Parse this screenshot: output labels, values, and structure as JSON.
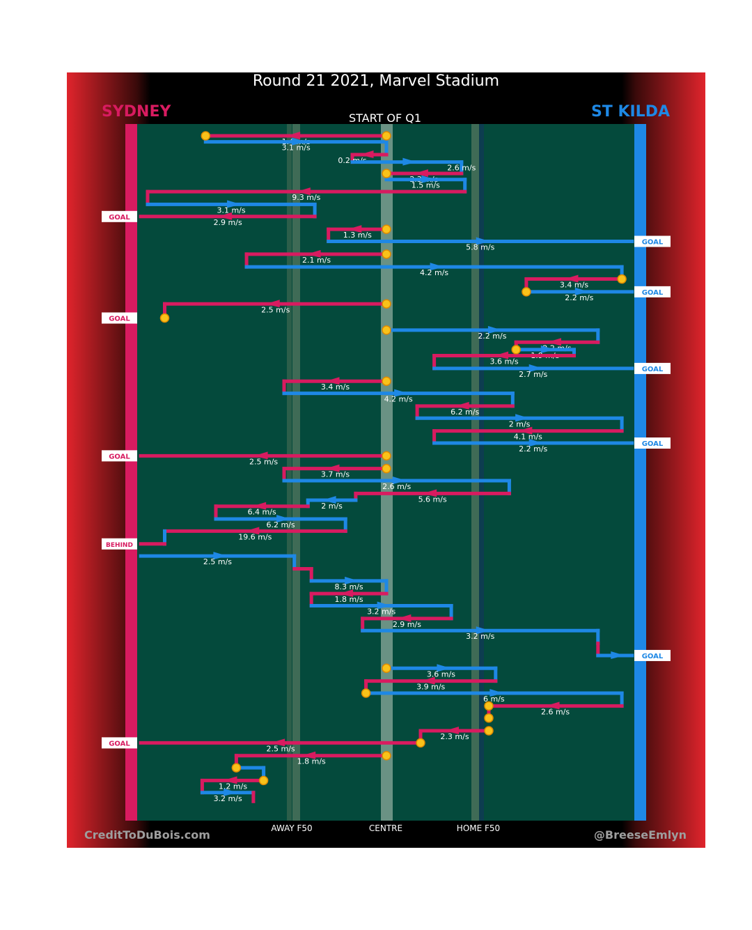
{
  "header": {
    "title": "Round 21 2021, Marvel Stadium",
    "period_label": "START OF Q1",
    "away_team": "SYDNEY",
    "home_team": "ST KILDA"
  },
  "footer": {
    "credit_left": "CreditToDuBois.com",
    "credit_right": "@BreeseEmlyn"
  },
  "colors": {
    "away": "#d81b60",
    "home": "#1e88e5",
    "field": "#044a3c",
    "marker": "#f9c21a"
  },
  "chart_data": {
    "type": "line",
    "title": "Round 21 2021, Marvel Stadium",
    "xlabel": "",
    "ylabel": "",
    "tick_labels": [
      "AWAY F50",
      "CENTRE",
      "HOME F50"
    ],
    "legend": [
      "SYDNEY",
      "ST KILDA"
    ],
    "segments": [
      {
        "team": "away",
        "start": [
          0.0,
          0.0
        ],
        "end": [
          -0.53,
          0.0
        ],
        "label": "1.4 m/s",
        "marker": "both"
      },
      {
        "team": "home",
        "start": [
          -0.53,
          0.009
        ],
        "end": [
          0.0,
          0.009
        ],
        "label": "3.1 m/s"
      },
      {
        "team": "home",
        "start": [
          0.0,
          0.009
        ],
        "end": [
          0.0,
          0.028
        ]
      },
      {
        "team": "away",
        "start": [
          0.0,
          0.028
        ],
        "end": [
          -0.1,
          0.028
        ]
      },
      {
        "team": "away",
        "start": [
          -0.1,
          0.028
        ],
        "end": [
          -0.1,
          0.039
        ],
        "label": "0.2 m/s"
      },
      {
        "team": "home",
        "start": [
          -0.1,
          0.039
        ],
        "end": [
          0.22,
          0.039
        ]
      },
      {
        "team": "home",
        "start": [
          0.22,
          0.039
        ],
        "end": [
          0.22,
          0.056
        ],
        "label": "2.6 m/s"
      },
      {
        "team": "away",
        "start": [
          0.22,
          0.056
        ],
        "end": [
          0.0,
          0.056
        ],
        "label": "2.3 m/s",
        "marker": "end"
      },
      {
        "team": "home",
        "start": [
          0.0,
          0.065
        ],
        "end": [
          0.23,
          0.065
        ],
        "label": "1.5 m/s"
      },
      {
        "team": "home",
        "start": [
          0.23,
          0.065
        ],
        "end": [
          0.23,
          0.083
        ]
      },
      {
        "team": "away",
        "start": [
          0.23,
          0.083
        ],
        "end": [
          -0.7,
          0.083
        ],
        "label": "9.3 m/s"
      },
      {
        "team": "away",
        "start": [
          -0.7,
          0.083
        ],
        "end": [
          -0.7,
          0.102
        ]
      },
      {
        "team": "home",
        "start": [
          -0.7,
          0.102
        ],
        "end": [
          -0.21,
          0.102
        ],
        "label": "3.1 m/s"
      },
      {
        "team": "home",
        "start": [
          -0.21,
          0.102
        ],
        "end": [
          -0.21,
          0.12
        ]
      },
      {
        "team": "away",
        "start": [
          -0.21,
          0.12
        ],
        "end": [
          -0.72,
          0.12
        ],
        "label": "2.9 m/s",
        "outcome": "GOAL"
      },
      {
        "team": "away",
        "start": [
          0.0,
          0.139
        ],
        "end": [
          -0.17,
          0.139
        ],
        "label": "1.3 m/s",
        "marker": "start"
      },
      {
        "team": "away",
        "start": [
          -0.17,
          0.139
        ],
        "end": [
          -0.17,
          0.157
        ]
      },
      {
        "team": "home",
        "start": [
          -0.17,
          0.157
        ],
        "end": [
          0.72,
          0.157
        ],
        "label": "5.8 m/s",
        "outcome": "GOAL"
      },
      {
        "team": "away",
        "start": [
          0.0,
          0.176
        ],
        "end": [
          -0.41,
          0.176
        ],
        "label": "2.1 m/s",
        "marker": "start"
      },
      {
        "team": "away",
        "start": [
          -0.41,
          0.176
        ],
        "end": [
          -0.41,
          0.195
        ]
      },
      {
        "team": "home",
        "start": [
          -0.41,
          0.195
        ],
        "end": [
          0.69,
          0.195
        ],
        "label": "4.2 m/s"
      },
      {
        "team": "home",
        "start": [
          0.69,
          0.195
        ],
        "end": [
          0.69,
          0.213
        ]
      },
      {
        "team": "away",
        "start": [
          0.69,
          0.213
        ],
        "end": [
          0.41,
          0.213
        ],
        "label": "3.4 m/s",
        "marker": "start"
      },
      {
        "team": "away",
        "start": [
          0.41,
          0.213
        ],
        "end": [
          0.41,
          0.232
        ]
      },
      {
        "team": "home",
        "start": [
          0.41,
          0.232
        ],
        "end": [
          0.72,
          0.232
        ],
        "label": "2.2 m/s",
        "marker": "start",
        "outcome": "GOAL"
      },
      {
        "team": "away",
        "start": [
          0.0,
          0.25
        ],
        "end": [
          -0.65,
          0.25
        ],
        "label": "2.5 m/s",
        "marker": "start"
      },
      {
        "team": "away",
        "start": [
          -0.65,
          0.25
        ],
        "end": [
          -0.65,
          0.271
        ],
        "marker": "end",
        "outcome": "GOAL"
      },
      {
        "team": "home",
        "start": [
          0.0,
          0.289
        ],
        "end": [
          0.62,
          0.289
        ],
        "label": "2.2 m/s",
        "marker": "start"
      },
      {
        "team": "home",
        "start": [
          0.62,
          0.289
        ],
        "end": [
          0.62,
          0.307
        ]
      },
      {
        "team": "away",
        "start": [
          0.62,
          0.307
        ],
        "end": [
          0.38,
          0.307
        ],
        "label": "2.2 m/s"
      },
      {
        "team": "away",
        "start": [
          0.38,
          0.307
        ],
        "end": [
          0.38,
          0.318
        ],
        "marker": "end"
      },
      {
        "team": "home",
        "start": [
          0.38,
          0.318
        ],
        "end": [
          0.55,
          0.318
        ],
        "label": "1.9 m/s"
      },
      {
        "team": "home",
        "start": [
          0.55,
          0.318
        ],
        "end": [
          0.55,
          0.327
        ]
      },
      {
        "team": "away",
        "start": [
          0.55,
          0.327
        ],
        "end": [
          0.14,
          0.327
        ],
        "label": "3.6 m/s"
      },
      {
        "team": "away",
        "start": [
          0.14,
          0.327
        ],
        "end": [
          0.14,
          0.346
        ]
      },
      {
        "team": "home",
        "start": [
          0.14,
          0.346
        ],
        "end": [
          0.72,
          0.346
        ],
        "label": "2.7 m/s",
        "outcome": "GOAL"
      },
      {
        "team": "away",
        "start": [
          0.0,
          0.365
        ],
        "end": [
          -0.3,
          0.365
        ],
        "label": "3.4 m/s",
        "marker": "start"
      },
      {
        "team": "away",
        "start": [
          -0.3,
          0.365
        ],
        "end": [
          -0.3,
          0.383
        ]
      },
      {
        "team": "home",
        "start": [
          -0.3,
          0.383
        ],
        "end": [
          0.37,
          0.383
        ],
        "label": "4.2 m/s"
      },
      {
        "team": "home",
        "start": [
          0.37,
          0.383
        ],
        "end": [
          0.37,
          0.402
        ]
      },
      {
        "team": "away",
        "start": [
          0.37,
          0.402
        ],
        "end": [
          0.09,
          0.402
        ],
        "label": "6.2 m/s"
      },
      {
        "team": "away",
        "start": [
          0.09,
          0.402
        ],
        "end": [
          0.09,
          0.42
        ]
      },
      {
        "team": "home",
        "start": [
          0.09,
          0.42
        ],
        "end": [
          0.69,
          0.42
        ],
        "label": "2 m/s"
      },
      {
        "team": "home",
        "start": [
          0.69,
          0.42
        ],
        "end": [
          0.69,
          0.439
        ]
      },
      {
        "team": "away",
        "start": [
          0.69,
          0.439
        ],
        "end": [
          0.14,
          0.439
        ],
        "label": "4.1 m/s"
      },
      {
        "team": "away",
        "start": [
          0.14,
          0.439
        ],
        "end": [
          0.14,
          0.457
        ]
      },
      {
        "team": "home",
        "start": [
          0.14,
          0.457
        ],
        "end": [
          0.72,
          0.457
        ],
        "label": "2.2 m/s",
        "outcome": "GOAL"
      },
      {
        "team": "away",
        "start": [
          0.0,
          0.476
        ],
        "end": [
          -0.72,
          0.476
        ],
        "label": "2.5 m/s",
        "marker": "start",
        "outcome": "GOAL"
      },
      {
        "team": "away",
        "start": [
          0.0,
          0.495
        ],
        "end": [
          -0.3,
          0.495
        ],
        "label": "3.7 m/s",
        "marker": "start"
      },
      {
        "team": "away",
        "start": [
          -0.3,
          0.495
        ],
        "end": [
          -0.3,
          0.513
        ]
      },
      {
        "team": "home",
        "start": [
          -0.3,
          0.513
        ],
        "end": [
          0.36,
          0.513
        ],
        "label": "2.6 m/s"
      },
      {
        "team": "home",
        "start": [
          0.36,
          0.513
        ],
        "end": [
          0.36,
          0.532
        ]
      },
      {
        "team": "away",
        "start": [
          0.36,
          0.532
        ],
        "end": [
          -0.09,
          0.532
        ],
        "label": "5.6 m/s"
      },
      {
        "team": "away",
        "start": [
          -0.09,
          0.532
        ],
        "end": [
          -0.09,
          0.542
        ]
      },
      {
        "team": "home",
        "start": [
          -0.09,
          0.542
        ],
        "end": [
          -0.23,
          0.542
        ],
        "label": "2 m/s"
      },
      {
        "team": "home",
        "start": [
          -0.23,
          0.542
        ],
        "end": [
          -0.23,
          0.551
        ]
      },
      {
        "team": "away",
        "start": [
          -0.23,
          0.551
        ],
        "end": [
          -0.5,
          0.551
        ],
        "label": "6.4 m/s"
      },
      {
        "team": "away",
        "start": [
          -0.5,
          0.551
        ],
        "end": [
          -0.5,
          0.57
        ]
      },
      {
        "team": "home",
        "start": [
          -0.5,
          0.57
        ],
        "end": [
          -0.12,
          0.57
        ],
        "label": "6.2 m/s"
      },
      {
        "team": "home",
        "start": [
          -0.12,
          0.57
        ],
        "end": [
          -0.12,
          0.588
        ]
      },
      {
        "team": "away",
        "start": [
          -0.12,
          0.588
        ],
        "end": [
          -0.65,
          0.588
        ],
        "label": "19.6 m/s"
      },
      {
        "team": "away",
        "start": [
          -0.65,
          0.588
        ],
        "end": [
          -0.65,
          0.607
        ]
      },
      {
        "team": "home",
        "start": [
          -0.65,
          0.588
        ],
        "end": [
          -0.65,
          0.607
        ]
      },
      {
        "team": "away",
        "start": [
          -0.65,
          0.607
        ],
        "end": [
          -0.72,
          0.607
        ],
        "outcome": "BEHIND"
      },
      {
        "team": "home",
        "start": [
          -0.72,
          0.625
        ],
        "end": [
          -0.27,
          0.625
        ],
        "label": "2.5 m/s"
      },
      {
        "team": "home",
        "start": [
          -0.27,
          0.625
        ],
        "end": [
          -0.27,
          0.644
        ]
      },
      {
        "team": "away",
        "start": [
          -0.27,
          0.644
        ],
        "end": [
          -0.22,
          0.644
        ]
      },
      {
        "team": "away",
        "start": [
          -0.22,
          0.644
        ],
        "end": [
          -0.22,
          0.662
        ]
      },
      {
        "team": "home",
        "start": [
          -0.22,
          0.662
        ],
        "end": [
          0.0,
          0.662
        ],
        "label": "8.3 m/s"
      },
      {
        "team": "home",
        "start": [
          0.0,
          0.662
        ],
        "end": [
          0.0,
          0.681
        ]
      },
      {
        "team": "away",
        "start": [
          0.0,
          0.681
        ],
        "end": [
          -0.22,
          0.681
        ],
        "label": "1.8 m/s"
      },
      {
        "team": "away",
        "start": [
          -0.22,
          0.681
        ],
        "end": [
          -0.22,
          0.699
        ]
      },
      {
        "team": "home",
        "start": [
          -0.22,
          0.699
        ],
        "end": [
          0.19,
          0.699
        ],
        "label": "3.2 m/s"
      },
      {
        "team": "home",
        "start": [
          0.19,
          0.699
        ],
        "end": [
          0.19,
          0.718
        ]
      },
      {
        "team": "away",
        "start": [
          0.19,
          0.718
        ],
        "end": [
          -0.07,
          0.718
        ],
        "label": "2.9 m/s"
      },
      {
        "team": "away",
        "start": [
          -0.07,
          0.718
        ],
        "end": [
          -0.07,
          0.736
        ]
      },
      {
        "team": "home",
        "start": [
          -0.07,
          0.736
        ],
        "end": [
          0.62,
          0.736
        ],
        "label": "3.2 m/s"
      },
      {
        "team": "home",
        "start": [
          0.62,
          0.736
        ],
        "end": [
          0.62,
          0.755
        ]
      },
      {
        "team": "away",
        "start": [
          0.62,
          0.755
        ],
        "end": [
          0.62,
          0.773
        ]
      },
      {
        "team": "home",
        "start": [
          0.62,
          0.773
        ],
        "end": [
          0.72,
          0.773
        ],
        "outcome": "GOAL"
      },
      {
        "team": "home",
        "start": [
          0.0,
          0.792
        ],
        "end": [
          0.32,
          0.792
        ],
        "label": "3.6 m/s",
        "marker": "start"
      },
      {
        "team": "home",
        "start": [
          0.32,
          0.792
        ],
        "end": [
          0.32,
          0.811
        ]
      },
      {
        "team": "away",
        "start": [
          0.32,
          0.811
        ],
        "end": [
          -0.06,
          0.811
        ],
        "label": "3.9 m/s"
      },
      {
        "team": "away",
        "start": [
          -0.06,
          0.811
        ],
        "end": [
          -0.06,
          0.829
        ],
        "marker": "end"
      },
      {
        "team": "home",
        "start": [
          -0.06,
          0.829
        ],
        "end": [
          0.69,
          0.829
        ],
        "label": "6 m/s"
      },
      {
        "team": "home",
        "start": [
          0.69,
          0.829
        ],
        "end": [
          0.69,
          0.848
        ]
      },
      {
        "team": "away",
        "start": [
          0.69,
          0.848
        ],
        "end": [
          0.3,
          0.848
        ],
        "label": "2.6 m/s"
      },
      {
        "team": "away",
        "start": [
          0.3,
          0.848
        ],
        "end": [
          0.3,
          0.866
        ],
        "marker": "both"
      },
      {
        "team": "away",
        "start": [
          0.3,
          0.885
        ],
        "end": [
          0.1,
          0.885
        ],
        "label": "2.3 m/s",
        "marker": "start"
      },
      {
        "team": "away",
        "start": [
          0.1,
          0.885
        ],
        "end": [
          0.1,
          0.903
        ],
        "marker": "end"
      },
      {
        "team": "away",
        "start": [
          0.1,
          0.903
        ],
        "end": [
          -0.72,
          0.903
        ],
        "label": "2.5 m/s",
        "outcome": "GOAL"
      },
      {
        "team": "away",
        "start": [
          0.0,
          0.922
        ],
        "end": [
          -0.44,
          0.922
        ],
        "label": "1.8 m/s",
        "marker": "start"
      },
      {
        "team": "away",
        "start": [
          -0.44,
          0.922
        ],
        "end": [
          -0.44,
          0.94
        ],
        "marker": "end"
      },
      {
        "team": "home",
        "start": [
          -0.44,
          0.94
        ],
        "end": [
          -0.36,
          0.94
        ]
      },
      {
        "team": "home",
        "start": [
          -0.36,
          0.94
        ],
        "end": [
          -0.36,
          0.959
        ]
      },
      {
        "team": "away",
        "start": [
          -0.36,
          0.959
        ],
        "end": [
          -0.54,
          0.959
        ],
        "label": "1.2 m/s",
        "marker": "start"
      },
      {
        "team": "away",
        "start": [
          -0.54,
          0.959
        ],
        "end": [
          -0.54,
          0.977
        ]
      },
      {
        "team": "home",
        "start": [
          -0.54,
          0.977
        ],
        "end": [
          -0.39,
          0.977
        ],
        "label": "3.2 m/s"
      },
      {
        "team": "away",
        "start": [
          -0.39,
          0.977
        ],
        "end": [
          -0.39,
          0.99
        ]
      }
    ]
  }
}
